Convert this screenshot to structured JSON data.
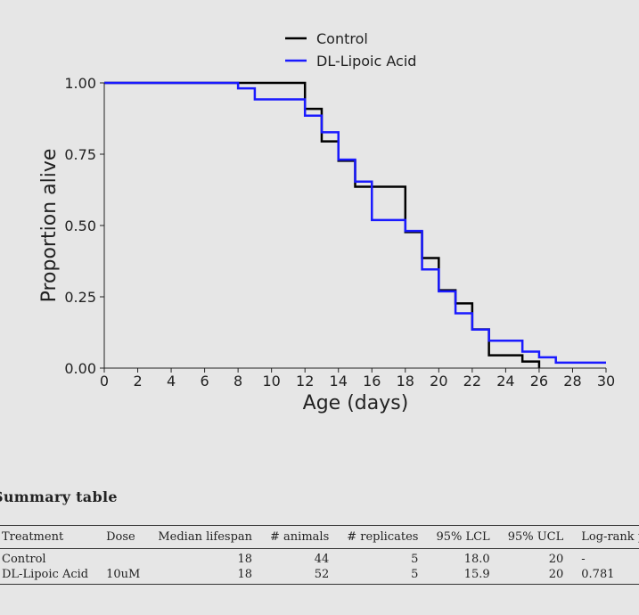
{
  "chart_data": {
    "type": "line",
    "step": true,
    "xlabel": "Age (days)",
    "ylabel": "Proportion alive",
    "xlim": [
      0,
      30
    ],
    "ylim": [
      0,
      1
    ],
    "xticks": [
      0,
      2,
      4,
      6,
      8,
      10,
      12,
      14,
      16,
      18,
      20,
      22,
      24,
      26,
      28,
      30
    ],
    "yticks": [
      "0.00",
      "0.25",
      "0.50",
      "0.75",
      "1.00"
    ],
    "legend": {
      "position": "top-center"
    },
    "grid": false,
    "series": [
      {
        "name": "Control",
        "color": "#000000",
        "x": [
          0,
          12,
          13,
          14,
          15,
          18,
          19,
          20,
          21,
          22,
          23,
          25,
          26
        ],
        "y": [
          1.0,
          0.909,
          0.795,
          0.727,
          0.636,
          0.477,
          0.386,
          0.273,
          0.227,
          0.136,
          0.045,
          0.023,
          0.0
        ]
      },
      {
        "name": "DL-Lipoic Acid",
        "color": "#1a1aff",
        "x": [
          0,
          8,
          9,
          12,
          13,
          14,
          15,
          16,
          18,
          19,
          20,
          21,
          22,
          23,
          25,
          26,
          27,
          30
        ],
        "y": [
          1.0,
          0.981,
          0.942,
          0.885,
          0.827,
          0.731,
          0.654,
          0.519,
          0.481,
          0.346,
          0.269,
          0.192,
          0.135,
          0.096,
          0.058,
          0.038,
          0.019,
          0.019
        ]
      }
    ]
  },
  "summary": {
    "title": "Summary table",
    "headers": [
      "Treatment",
      "Dose",
      "Median lifespan",
      "# animals",
      "# replicates",
      "95% LCL",
      "95% UCL",
      "Log-rank p"
    ],
    "rows": [
      [
        "Control",
        "",
        "18",
        "44",
        "5",
        "18.0",
        "20",
        "-"
      ],
      [
        "DL-Lipoic Acid",
        "10uM",
        "18",
        "52",
        "5",
        "15.9",
        "20",
        "0.781"
      ]
    ]
  }
}
